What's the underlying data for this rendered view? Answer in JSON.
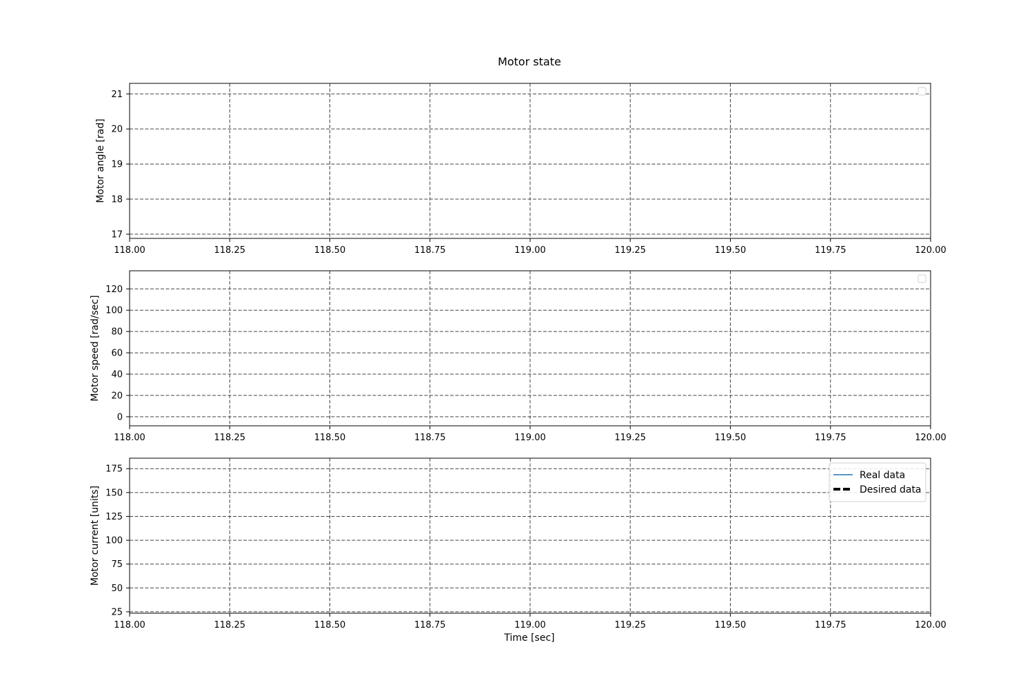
{
  "figure": {
    "title": "Motor state",
    "xlabel": "Time [sec]"
  },
  "chart_data": [
    {
      "type": "line",
      "ylabel": "Motor angle [rad]",
      "xlim": [
        118.0,
        120.0
      ],
      "ylim": [
        16.88,
        21.3
      ],
      "xticks": [
        118.0,
        118.25,
        118.5,
        118.75,
        119.0,
        119.25,
        119.5,
        119.75,
        120.0
      ],
      "xtick_labels": [
        "118.00",
        "118.25",
        "118.50",
        "118.75",
        "119.00",
        "119.25",
        "119.50",
        "119.75",
        "120.00"
      ],
      "yticks": [
        17,
        18,
        19,
        20,
        21
      ],
      "ytick_labels": [
        "17",
        "18",
        "19",
        "20",
        "21"
      ],
      "grid": true,
      "legend": {
        "position": "top-right",
        "entries": []
      },
      "series": []
    },
    {
      "type": "line",
      "ylabel": "Motor speed [rad/sec]",
      "xlim": [
        118.0,
        120.0
      ],
      "ylim": [
        -8.5,
        137
      ],
      "xticks": [
        118.0,
        118.25,
        118.5,
        118.75,
        119.0,
        119.25,
        119.5,
        119.75,
        120.0
      ],
      "xtick_labels": [
        "118.00",
        "118.25",
        "118.50",
        "118.75",
        "119.00",
        "119.25",
        "119.50",
        "119.75",
        "120.00"
      ],
      "yticks": [
        0,
        20,
        40,
        60,
        80,
        100,
        120
      ],
      "ytick_labels": [
        "0",
        "20",
        "40",
        "60",
        "80",
        "100",
        "120"
      ],
      "grid": true,
      "legend": {
        "position": "top-right",
        "entries": []
      },
      "series": []
    },
    {
      "type": "line",
      "ylabel": "Motor current [units]",
      "xlim": [
        118.0,
        120.0
      ],
      "ylim": [
        23.5,
        186
      ],
      "xticks": [
        118.0,
        118.25,
        118.5,
        118.75,
        119.0,
        119.25,
        119.5,
        119.75,
        120.0
      ],
      "xtick_labels": [
        "118.00",
        "118.25",
        "118.50",
        "118.75",
        "119.00",
        "119.25",
        "119.50",
        "119.75",
        "120.00"
      ],
      "yticks": [
        25,
        50,
        75,
        100,
        125,
        150,
        175
      ],
      "ytick_labels": [
        "25",
        "50",
        "75",
        "100",
        "125",
        "150",
        "175"
      ],
      "grid": true,
      "legend": {
        "position": "top-right",
        "entries": [
          {
            "label": "Real data",
            "color": "#1f77b4",
            "style": "solid"
          },
          {
            "label": "Desired data",
            "color": "#000000",
            "style": "dashed"
          }
        ]
      },
      "series": [
        {
          "name": "Real data",
          "color": "#1f77b4",
          "x": [],
          "y": []
        },
        {
          "name": "Desired data",
          "color": "#000000",
          "x": [],
          "y": []
        }
      ]
    }
  ]
}
